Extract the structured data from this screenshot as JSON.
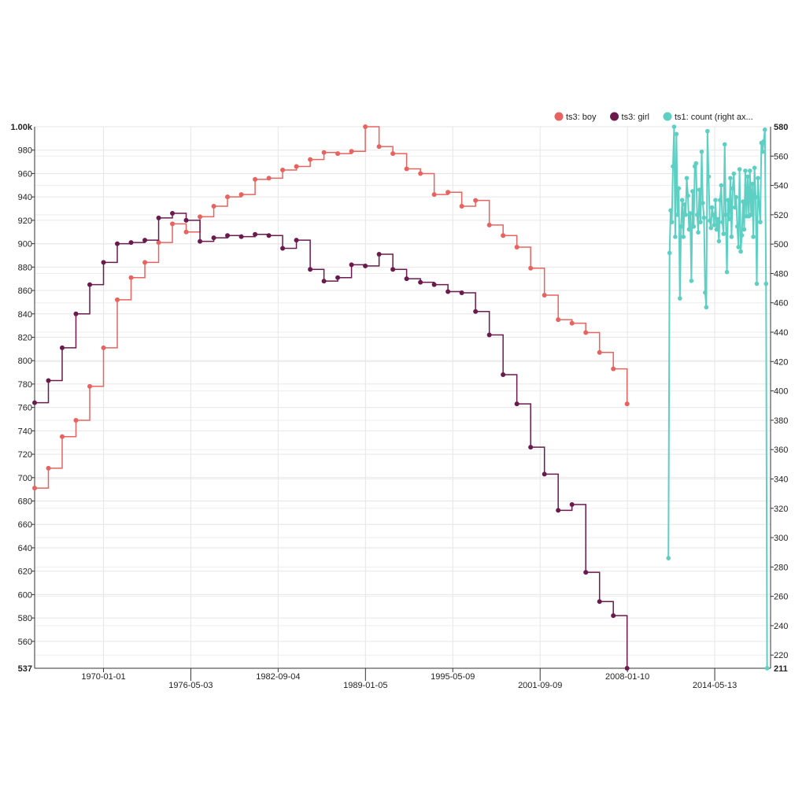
{
  "chart_data": {
    "type": "line",
    "step": true,
    "title": "",
    "xlabel": "",
    "ylabel": "",
    "x_axis": {
      "type": "date",
      "range": [
        "1965-01-01",
        "2018-06-01"
      ],
      "grid": true,
      "ticks_row1": [
        "1970-01-01",
        "1982-09-04",
        "1995-05-09",
        "2008-01-10"
      ],
      "ticks_row2": [
        "1976-05-03",
        "1989-01-05",
        "2001-09-09",
        "2014-05-13"
      ]
    },
    "y_left": {
      "range": [
        537,
        1000
      ],
      "min_label": "537",
      "max_label": "1.00k",
      "ticks": [
        560,
        580,
        600,
        620,
        640,
        660,
        680,
        700,
        720,
        740,
        760,
        780,
        800,
        820,
        840,
        860,
        880,
        900,
        920,
        940,
        960,
        980
      ],
      "grid": true
    },
    "y_right": {
      "range": [
        211,
        580
      ],
      "min_label": "211",
      "max_label": "580",
      "ticks": [
        220,
        240,
        260,
        280,
        300,
        320,
        340,
        360,
        380,
        400,
        420,
        440,
        460,
        480,
        500,
        520,
        540,
        560
      ],
      "grid": true
    },
    "legend": {
      "position": "top-right"
    },
    "series": [
      {
        "name": "ts3: boy",
        "color": "#e8635f",
        "axis": "left",
        "x": [
          "1965-01-01",
          "1966-01-01",
          "1967-01-01",
          "1968-01-01",
          "1969-01-01",
          "1970-01-01",
          "1971-01-01",
          "1972-01-01",
          "1973-01-01",
          "1974-01-01",
          "1975-01-01",
          "1976-01-01",
          "1977-01-01",
          "1978-01-01",
          "1979-01-01",
          "1980-01-01",
          "1981-01-01",
          "1982-01-01",
          "1983-01-01",
          "1984-01-01",
          "1985-01-01",
          "1986-01-01",
          "1987-01-01",
          "1988-01-01",
          "1989-01-01",
          "1990-01-01",
          "1991-01-01",
          "1992-01-01",
          "1993-01-01",
          "1994-01-01",
          "1995-01-01",
          "1996-01-01",
          "1997-01-01",
          "1998-01-01",
          "1999-01-01",
          "2000-01-01",
          "2001-01-01",
          "2002-01-01",
          "2003-01-01",
          "2004-01-01",
          "2005-01-01",
          "2006-01-01",
          "2007-01-01",
          "2008-01-01"
        ],
        "values": [
          691,
          708,
          735,
          749,
          778,
          811,
          852,
          871,
          884,
          901,
          917,
          910,
          923,
          932,
          940,
          942,
          955,
          956,
          963,
          966,
          972,
          978,
          977,
          979,
          1000,
          983,
          977,
          964,
          960,
          942,
          944,
          932,
          937,
          916,
          907,
          897,
          879,
          856,
          835,
          832,
          824,
          807,
          793,
          763
        ]
      },
      {
        "name": "ts3: girl",
        "color": "#6a1a4c",
        "axis": "left",
        "x": [
          "1965-01-01",
          "1966-01-01",
          "1967-01-01",
          "1968-01-01",
          "1969-01-01",
          "1970-01-01",
          "1971-01-01",
          "1972-01-01",
          "1973-01-01",
          "1974-01-01",
          "1975-01-01",
          "1976-01-01",
          "1977-01-01",
          "1978-01-01",
          "1979-01-01",
          "1980-01-01",
          "1981-01-01",
          "1982-01-01",
          "1983-01-01",
          "1984-01-01",
          "1985-01-01",
          "1986-01-01",
          "1987-01-01",
          "1988-01-01",
          "1989-01-01",
          "1990-01-01",
          "1991-01-01",
          "1992-01-01",
          "1993-01-01",
          "1994-01-01",
          "1995-01-01",
          "1996-01-01",
          "1997-01-01",
          "1998-01-01",
          "1999-01-01",
          "2000-01-01",
          "2001-01-01",
          "2002-01-01",
          "2003-01-01",
          "2004-01-01",
          "2005-01-01",
          "2006-01-01",
          "2007-01-01",
          "2008-01-01"
        ],
        "values": [
          764,
          783,
          811,
          840,
          865,
          884,
          900,
          901,
          903,
          922,
          926,
          920,
          902,
          905,
          907,
          906,
          908,
          907,
          896,
          903,
          878,
          868,
          871,
          882,
          881,
          891,
          878,
          870,
          867,
          865,
          859,
          858,
          842,
          822,
          788,
          763,
          726,
          703,
          672,
          677,
          619,
          594,
          582,
          537
        ]
      },
      {
        "name": "ts1: count (right ax...",
        "color": "#5ecfc3",
        "axis": "right",
        "x": [
          "2011-01-01",
          "2011-02-01",
          "2011-03-01",
          "2011-04-01",
          "2011-05-01",
          "2011-06-01",
          "2011-07-01",
          "2011-08-01",
          "2011-09-01",
          "2011-10-01",
          "2011-11-01",
          "2011-12-01",
          "2012-01-01",
          "2012-02-01",
          "2012-03-01",
          "2012-04-01",
          "2012-05-01",
          "2012-06-01",
          "2012-07-01",
          "2012-08-01",
          "2012-09-01",
          "2012-10-01",
          "2012-11-01",
          "2012-12-01",
          "2013-01-01",
          "2013-02-01",
          "2013-03-01",
          "2013-04-01",
          "2013-05-01",
          "2013-06-01",
          "2013-07-01",
          "2013-08-01",
          "2013-09-01",
          "2013-10-01",
          "2013-11-01",
          "2013-12-01",
          "2014-01-01",
          "2014-02-01",
          "2014-03-01",
          "2014-04-01",
          "2014-05-01",
          "2014-06-01",
          "2014-07-01",
          "2014-08-01",
          "2014-09-01",
          "2014-10-01",
          "2014-11-01",
          "2014-12-01",
          "2015-01-01",
          "2015-02-01",
          "2015-03-01",
          "2015-04-01",
          "2015-05-01",
          "2015-06-01",
          "2015-07-01",
          "2015-08-01",
          "2015-09-01",
          "2015-10-01",
          "2015-11-01",
          "2015-12-01",
          "2016-01-01",
          "2016-02-01",
          "2016-03-01",
          "2016-04-01",
          "2016-05-01",
          "2016-06-01",
          "2016-07-01",
          "2016-08-01",
          "2016-09-01",
          "2016-10-01",
          "2016-11-01",
          "2016-12-01",
          "2017-01-01",
          "2017-02-01",
          "2017-03-01",
          "2017-04-01",
          "2017-05-01",
          "2017-06-01",
          "2017-07-01",
          "2017-08-01",
          "2017-09-01",
          "2017-10-01",
          "2017-11-01",
          "2017-12-01",
          "2018-01-01",
          "2018-02-01",
          "2018-03-01"
        ],
        "values": [
          286,
          494,
          523,
          515,
          553,
          580,
          505,
          575,
          520,
          538,
          463,
          512,
          530,
          505,
          527,
          520,
          545,
          533,
          510,
          521,
          475,
          536,
          512,
          553,
          555,
          520,
          508,
          537,
          515,
          563,
          528,
          518,
          467,
          457,
          577,
          546,
          516,
          511,
          525,
          520,
          513,
          530,
          510,
          517,
          502,
          530,
          540,
          515,
          507,
          568,
          520,
          481,
          530,
          517,
          545,
          505,
          538,
          548,
          525,
          532,
          512,
          498,
          551,
          495,
          506,
          529,
          510,
          550,
          519,
          546,
          519,
          550,
          520,
          541,
          505,
          552,
          532,
          473,
          545,
          527,
          515,
          569,
          563,
          570,
          578,
          473,
          211
        ]
      }
    ]
  }
}
